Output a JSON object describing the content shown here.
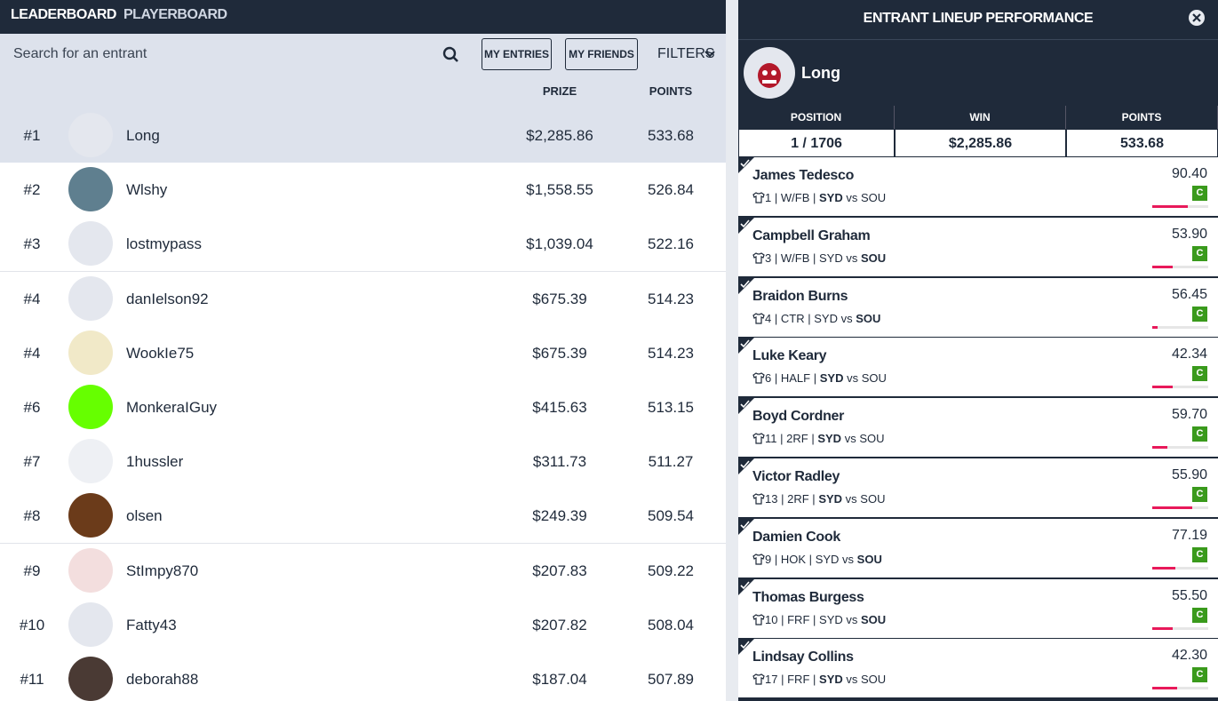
{
  "tabs": [
    "LEADERBOARD",
    "PLAYERBOARD"
  ],
  "search_placeholder": "Search for an entrant",
  "buttons": [
    "MY ENTRIES",
    "MY FRIENDS"
  ],
  "filters": "FILTERS",
  "columns": {
    "prize": "PRIZE",
    "points": "POINTS"
  },
  "entries": [
    {
      "rank": "#1",
      "name": "Long",
      "prize": "$2,285.86",
      "points": "533.68",
      "avatar_color": "#e4e7ee"
    },
    {
      "rank": "#2",
      "name": "Wlshy",
      "prize": "$1,558.55",
      "points": "526.84",
      "avatar_color": "#5f7f8f"
    },
    {
      "rank": "#3",
      "name": "lostmypass",
      "prize": "$1,039.04",
      "points": "522.16",
      "avatar_color": "#e4e7ee"
    },
    {
      "rank": "#4",
      "name": "danIelson92",
      "prize": "$675.39",
      "points": "514.23",
      "avatar_color": "#e4e7ee"
    },
    {
      "rank": "#4",
      "name": "WookIe75",
      "prize": "$675.39",
      "points": "514.23",
      "avatar_color": "#f1e9c8"
    },
    {
      "rank": "#6",
      "name": "MonkeraIGuy",
      "prize": "$415.63",
      "points": "513.15",
      "avatar_color": "#66ff00"
    },
    {
      "rank": "#7",
      "name": "1hussler",
      "prize": "$311.73",
      "points": "511.27",
      "avatar_color": "#eef0f4"
    },
    {
      "rank": "#8",
      "name": "olsen",
      "prize": "$249.39",
      "points": "509.54",
      "avatar_color": "#6b3b1a"
    },
    {
      "rank": "#9",
      "name": "StImpy870",
      "prize": "$207.83",
      "points": "509.22",
      "avatar_color": "#f3dede"
    },
    {
      "rank": "#10",
      "name": "Fatty43",
      "prize": "$207.82",
      "points": "508.04",
      "avatar_color": "#e4e7ee"
    },
    {
      "rank": "#11",
      "name": "deborah88",
      "prize": "$187.04",
      "points": "507.89",
      "avatar_color": "#4a3a34"
    }
  ],
  "panel": {
    "title": "ENTRANT LINEUP PERFORMANCE",
    "entrant": "Long",
    "stats": [
      {
        "label": "POSITION",
        "value": "1 / 1706"
      },
      {
        "label": "WIN",
        "value": "$2,285.86"
      },
      {
        "label": "POINTS",
        "value": "533.68"
      }
    ],
    "separator": "|",
    "versus": "vs",
    "players": [
      {
        "name": "James Tedesco",
        "number": "1",
        "position": "W/FB",
        "home": "SYD",
        "away": "SOU",
        "bold": "home",
        "points": "90.40",
        "badge": "C",
        "bar": 63
      },
      {
        "name": "Campbell Graham",
        "number": "3",
        "position": "W/FB",
        "home": "SYD",
        "away": "SOU",
        "bold": "away",
        "points": "53.90",
        "badge": "C",
        "bar": 37
      },
      {
        "name": "Braidon Burns",
        "number": "4",
        "position": "CTR",
        "home": "SYD",
        "away": "SOU",
        "bold": "away",
        "points": "56.45",
        "badge": "C",
        "bar": 10
      },
      {
        "name": "Luke Keary",
        "number": "6",
        "position": "HALF",
        "home": "SYD",
        "away": "SOU",
        "bold": "home",
        "points": "42.34",
        "badge": "C",
        "bar": 37
      },
      {
        "name": "Boyd Cordner",
        "number": "11",
        "position": "2RF",
        "home": "SYD",
        "away": "SOU",
        "bold": "home",
        "points": "59.70",
        "badge": "C",
        "bar": 27
      },
      {
        "name": "Victor Radley",
        "number": "13",
        "position": "2RF",
        "home": "SYD",
        "away": "SOU",
        "bold": "home",
        "points": "55.90",
        "badge": "C",
        "bar": 71
      },
      {
        "name": "Damien Cook",
        "number": "9",
        "position": "HOK",
        "home": "SYD",
        "away": "SOU",
        "bold": "away",
        "points": "77.19",
        "badge": "C",
        "bar": 41
      },
      {
        "name": "Thomas Burgess",
        "number": "10",
        "position": "FRF",
        "home": "SYD",
        "away": "SOU",
        "bold": "away",
        "points": "55.50",
        "badge": "C",
        "bar": 37
      },
      {
        "name": "Lindsay Collins",
        "number": "17",
        "position": "FRF",
        "home": "SYD",
        "away": "SOU",
        "bold": "home",
        "points": "42.30",
        "badge": "C",
        "bar": 44
      }
    ]
  }
}
